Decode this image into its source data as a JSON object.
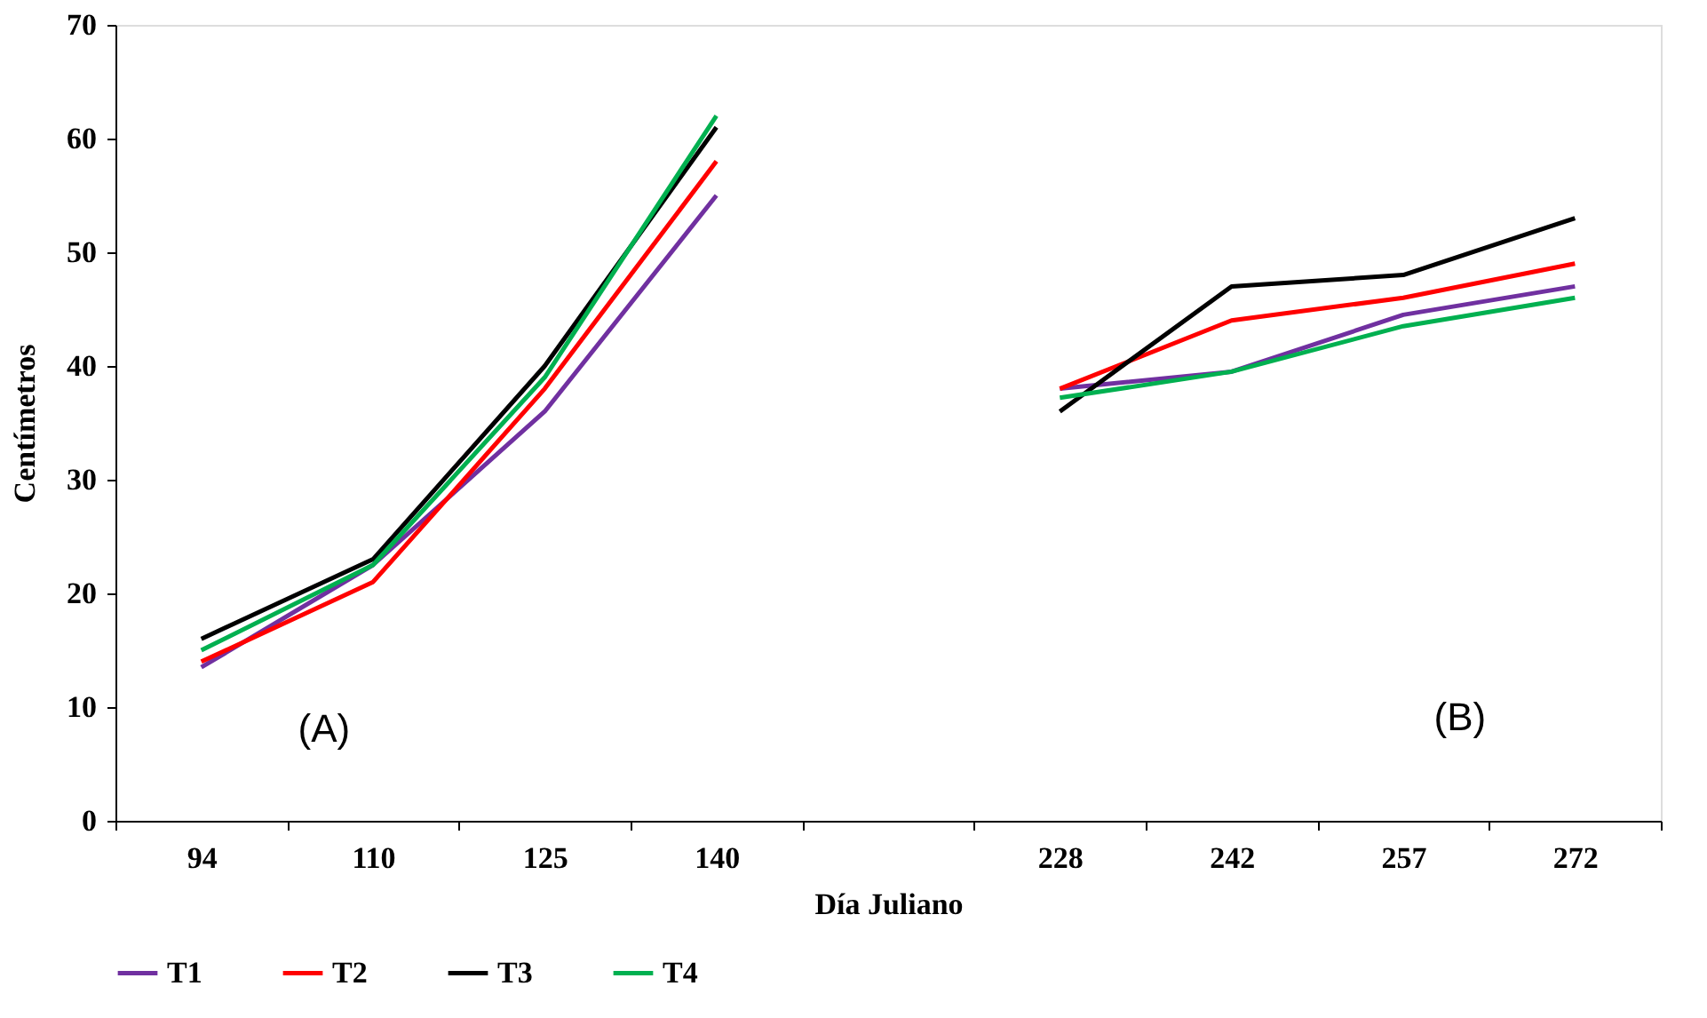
{
  "chart_data": {
    "type": "line",
    "xlabel": "Día Juliano",
    "ylabel": "Centímetros",
    "categories": [
      "94",
      "110",
      "125",
      "140",
      null,
      "228",
      "242",
      "257",
      "272"
    ],
    "series": [
      {
        "name": "T1",
        "color": "#7030a0",
        "values": [
          13.5,
          22.5,
          36,
          55,
          null,
          38,
          39.5,
          44.5,
          47
        ]
      },
      {
        "name": "T2",
        "color": "#ff0000",
        "values": [
          14,
          21,
          38,
          58,
          null,
          38,
          44,
          46,
          49
        ]
      },
      {
        "name": "T3",
        "color": "#000000",
        "values": [
          16,
          23,
          40,
          61,
          null,
          36,
          47,
          48,
          53
        ]
      },
      {
        "name": "T4",
        "color": "#00b050",
        "values": [
          15,
          22.5,
          39,
          62,
          null,
          37.2,
          39.5,
          43.5,
          46
        ]
      }
    ],
    "ylim": [
      0,
      70
    ],
    "yticks": [
      0,
      10,
      20,
      30,
      40,
      50,
      60,
      70
    ],
    "annotations": [
      "(A)",
      "(B)"
    ],
    "grid": false,
    "legend": "bottom",
    "marker": "none",
    "line_style": "solid"
  }
}
